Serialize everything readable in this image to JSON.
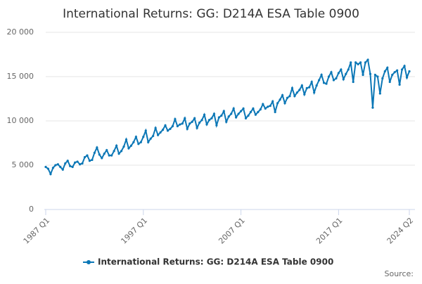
{
  "chart_data": {
    "type": "line",
    "title": "International Returns: GG: D214A ESA Table 0900",
    "source": "Source:",
    "categories": [
      "1987 Q1",
      null,
      null,
      null,
      null,
      null,
      null,
      null,
      null,
      null,
      null,
      null,
      null,
      null,
      null,
      null,
      null,
      null,
      null,
      null,
      null,
      null,
      null,
      null,
      null,
      null,
      null,
      null,
      null,
      null,
      null,
      null,
      null,
      null,
      null,
      null,
      null,
      null,
      null,
      null,
      "1997 Q1",
      null,
      null,
      null,
      null,
      null,
      null,
      null,
      null,
      null,
      null,
      null,
      null,
      null,
      null,
      null,
      null,
      null,
      null,
      null,
      null,
      null,
      null,
      null,
      null,
      null,
      null,
      null,
      null,
      null,
      null,
      null,
      null,
      null,
      null,
      null,
      null,
      null,
      null,
      null,
      "2007 Q1",
      null,
      null,
      null,
      null,
      null,
      null,
      null,
      null,
      null,
      null,
      null,
      null,
      null,
      null,
      null,
      null,
      null,
      null,
      null,
      null,
      null,
      null,
      null,
      null,
      null,
      null,
      null,
      null,
      null,
      null,
      null,
      null,
      null,
      null,
      null,
      null,
      null,
      null,
      null,
      "2017 Q1",
      null,
      null,
      null,
      null,
      null,
      null,
      null,
      null,
      null,
      null,
      null,
      null,
      null,
      null,
      null,
      null,
      null,
      null,
      null,
      null,
      null,
      null,
      null,
      null,
      null,
      null,
      null,
      null,
      "2024 Q2"
    ],
    "series": [
      {
        "name": "International Returns: GG: D214A ESA Table 0900",
        "color": "#0b77b6",
        "values": [
          4800,
          4600,
          4000,
          4700,
          5000,
          5100,
          4800,
          4500,
          5200,
          5500,
          4900,
          4800,
          5300,
          5400,
          5100,
          5200,
          5900,
          6100,
          5500,
          5600,
          6400,
          7000,
          6200,
          5800,
          6300,
          6700,
          6100,
          6100,
          6600,
          7200,
          6300,
          6600,
          7100,
          7900,
          6900,
          7200,
          7600,
          8200,
          7400,
          7600,
          8200,
          8900,
          7600,
          8000,
          8300,
          9200,
          8400,
          8700,
          9000,
          9500,
          8900,
          9100,
          9400,
          10200,
          9400,
          9600,
          9700,
          10300,
          9100,
          9700,
          9900,
          10300,
          9200,
          9800,
          10100,
          10700,
          9600,
          10100,
          10300,
          10800,
          9500,
          10400,
          10600,
          11100,
          9900,
          10500,
          10800,
          11400,
          10400,
          10800,
          11100,
          11400,
          10300,
          10600,
          11000,
          11400,
          10700,
          11000,
          11300,
          11900,
          11400,
          11600,
          11700,
          12200,
          11000,
          12000,
          12400,
          12900,
          12000,
          12600,
          12800,
          13700,
          12800,
          13200,
          13500,
          14000,
          13000,
          13700,
          13800,
          14400,
          13200,
          14000,
          14600,
          15200,
          14300,
          14200,
          15000,
          15500,
          14600,
          14800,
          15400,
          15800,
          14700,
          15300,
          15800,
          16600,
          14400,
          16600,
          16400,
          16600,
          15200,
          16600,
          16900,
          15300,
          11500,
          15200,
          15000,
          13100,
          14800,
          15600,
          16000,
          14400,
          15200,
          15500,
          15700,
          14100,
          15800,
          16200,
          14900,
          15600
        ]
      }
    ],
    "ylim": [
      0,
      20000
    ],
    "yticks": [
      0,
      {
        "value": 5000,
        "label": "5 000"
      },
      {
        "value": 10000,
        "label": "10 000"
      },
      {
        "value": 15000,
        "label": "15 000"
      },
      {
        "value": 20000,
        "label": "20 000"
      }
    ],
    "grid": true
  }
}
